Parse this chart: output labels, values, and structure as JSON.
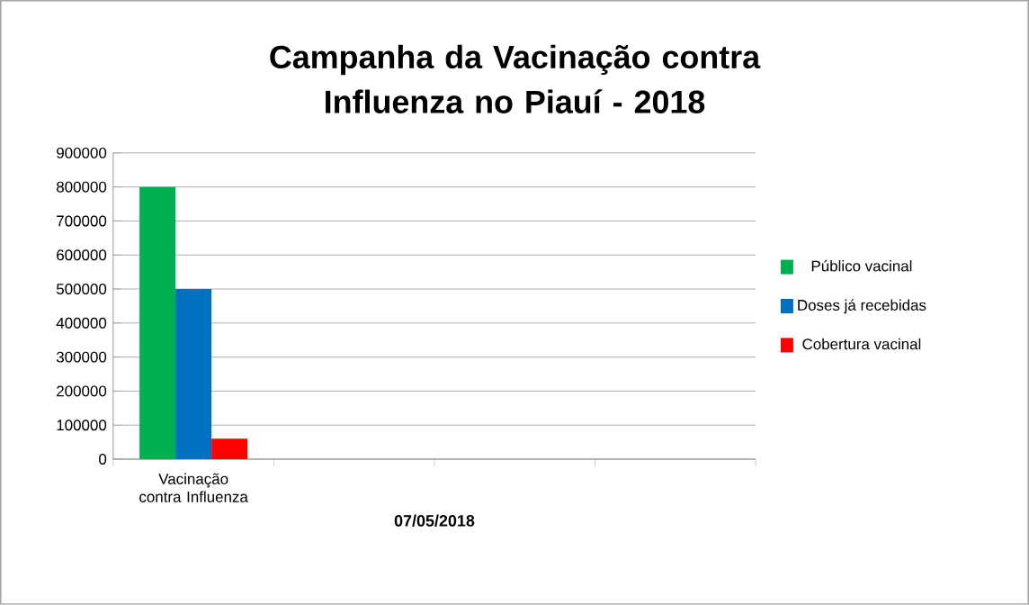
{
  "chart_data": {
    "type": "bar",
    "title": "Campanha da Vacinação contra Influenza no Piauí - 2018",
    "xlabel": "07/05/2018",
    "categories": [
      "Vacinação contra Influenza",
      null,
      null,
      null
    ],
    "series": [
      {
        "name": "Público vacinal",
        "color": "#00b050",
        "values": [
          800000,
          null,
          null,
          null
        ]
      },
      {
        "name": "Doses já recebidas",
        "color": "#0070c0",
        "values": [
          500000,
          null,
          null,
          null
        ]
      },
      {
        "name": "Cobertura vacinal",
        "color": "#ff0000",
        "values": [
          60000,
          null,
          null,
          null
        ]
      }
    ],
    "ylim": [
      0,
      900000
    ],
    "yticks": [
      0,
      100000,
      200000,
      300000,
      400000,
      500000,
      600000,
      700000,
      800000,
      900000
    ],
    "grid": "y",
    "legend": "right"
  }
}
